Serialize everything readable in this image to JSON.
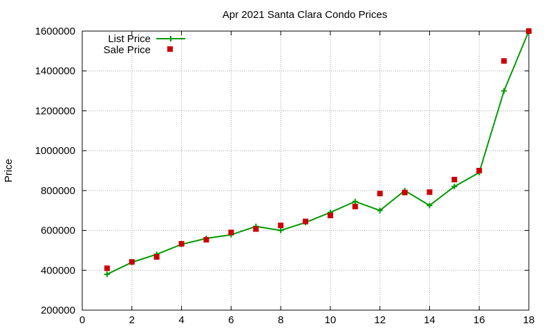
{
  "chart_data": {
    "type": "line",
    "title": "Apr 2021 Santa Clara Condo Prices",
    "xlabel": "",
    "ylabel": "Price",
    "xlim": [
      0,
      18
    ],
    "ylim": [
      200000,
      1600000
    ],
    "x_ticks": [
      0,
      2,
      4,
      6,
      8,
      10,
      12,
      14,
      16,
      18
    ],
    "y_ticks": [
      200000,
      400000,
      600000,
      800000,
      1000000,
      1200000,
      1400000,
      1600000
    ],
    "grid": true,
    "legend_position": "top-left",
    "series": [
      {
        "name": "List Price",
        "style": "line-plus",
        "color": "#009900",
        "x": [
          1,
          2,
          3,
          4,
          5,
          6,
          7,
          8,
          9,
          10,
          11,
          12,
          13,
          14,
          15,
          16,
          17,
          18
        ],
        "y": [
          380000,
          440000,
          480000,
          530000,
          560000,
          578000,
          620000,
          600000,
          640000,
          690000,
          745000,
          700000,
          800000,
          725000,
          820000,
          890000,
          1300000,
          1600000
        ]
      },
      {
        "name": "Sale Price",
        "style": "square-points",
        "color": "#cc0000",
        "x": [
          1,
          2,
          3,
          4,
          5,
          6,
          7,
          8,
          9,
          10,
          11,
          12,
          13,
          14,
          15,
          16,
          17,
          18
        ],
        "y": [
          410000,
          442000,
          467000,
          533000,
          553000,
          590000,
          607000,
          625000,
          645000,
          675000,
          720000,
          785000,
          790000,
          792000,
          855000,
          900000,
          1450000,
          1600000
        ]
      }
    ]
  }
}
